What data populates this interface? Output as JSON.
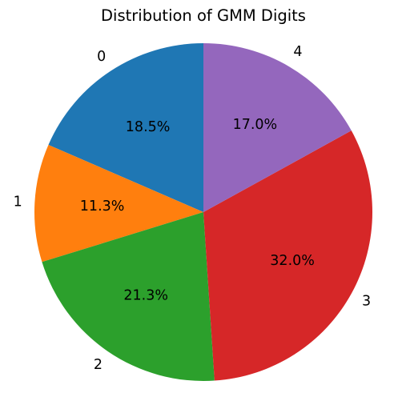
{
  "chart_data": {
    "type": "pie",
    "title": "Distribution of GMM Digits",
    "start_angle_deg": 90,
    "direction": "counterclockwise",
    "slices": [
      {
        "label": "0",
        "value": 18.5,
        "pct_label": "18.5%",
        "color": "#1f77b4"
      },
      {
        "label": "1",
        "value": 11.3,
        "pct_label": "11.3%",
        "color": "#ff7f0e"
      },
      {
        "label": "2",
        "value": 21.3,
        "pct_label": "21.3%",
        "color": "#2ca02c"
      },
      {
        "label": "3",
        "value": 32.0,
        "pct_label": "32.0%",
        "color": "#d62728"
      },
      {
        "label": "4",
        "value": 17.0,
        "pct_label": "17.0%",
        "color": "#9467bd"
      }
    ]
  }
}
